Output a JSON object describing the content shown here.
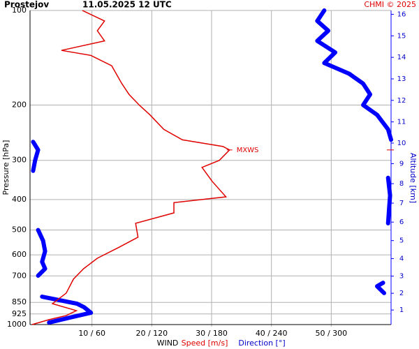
{
  "chart_data": {
    "type": "wind-profile",
    "station": "Prostejov",
    "datetime": "11.05.2025 12 UTC",
    "credit": "CHMI © 2025",
    "ylabel": "Pressure [hPa]",
    "y2label": "Altitude [km]",
    "xlabel": "WIND",
    "speed_label": "Speed [m/s]",
    "direction_label": "Direction [°]",
    "yscale": "log",
    "ylim": [
      1000,
      100
    ],
    "yticks": [
      100,
      200,
      300,
      400,
      500,
      600,
      700,
      850,
      925,
      1000
    ],
    "xlim": [
      0,
      60
    ],
    "dirlim": [
      0,
      360
    ],
    "xticks": [
      {
        "value": 10,
        "label": "10 / 60"
      },
      {
        "value": 20,
        "label": "20 / 120"
      },
      {
        "value": 30,
        "label": "30 / 180"
      },
      {
        "value": 40,
        "label": "40 / 240"
      },
      {
        "value": 50,
        "label": "50 / 300"
      }
    ],
    "y2ticks": [
      1,
      2,
      3,
      4,
      5,
      6,
      7,
      8,
      9,
      10,
      11,
      12,
      13,
      14,
      15,
      16
    ],
    "grid": true,
    "speed": {
      "color": "#e00000",
      "pressure": [
        100,
        108,
        116,
        125,
        134,
        139,
        150,
        171,
        185,
        200,
        215,
        239,
        258,
        271,
        278,
        300,
        316,
        350,
        392,
        409,
        441,
        476,
        527,
        569,
        615,
        664,
        717,
        794,
        858,
        903,
        936,
        965,
        1000
      ],
      "values": [
        8.4,
        12.1,
        10.9,
        12.1,
        4.9,
        9.8,
        13.3,
        15,
        16.2,
        17.9,
        19.7,
        22,
        25.1,
        31.9,
        33,
        31.3,
        28.4,
        30.1,
        32.4,
        23.7,
        23.7,
        17.3,
        17.7,
        14.4,
        10.9,
        8.6,
        6.9,
        5.7,
        3.4,
        7.4,
        5.7,
        2.8,
        0
      ]
    },
    "direction": {
      "color": "#0000ff",
      "pressure": [
        100,
        108,
        116,
        125,
        136,
        147,
        159,
        171,
        185,
        200,
        215,
        239,
        258,
        262,
        278,
        300,
        324,
        341,
        388,
        429,
        476,
        500,
        541,
        584,
        631,
        664,
        699,
        736,
        755,
        794,
        815,
        858,
        880,
        917,
        950,
        985
      ],
      "values": [
        293,
        286,
        297,
        286,
        304,
        293,
        318,
        332,
        339,
        332,
        346,
        357,
        360,
        1,
        6,
        3,
        1,
        357,
        359,
        358,
        357,
        6,
        11,
        13,
        10,
        13,
        6,
        352,
        346,
        353,
        10,
        45,
        52,
        59,
        38,
        17
      ]
    },
    "annotation": {
      "text": "MXWS",
      "pressure": 278,
      "speed": 33
    }
  }
}
